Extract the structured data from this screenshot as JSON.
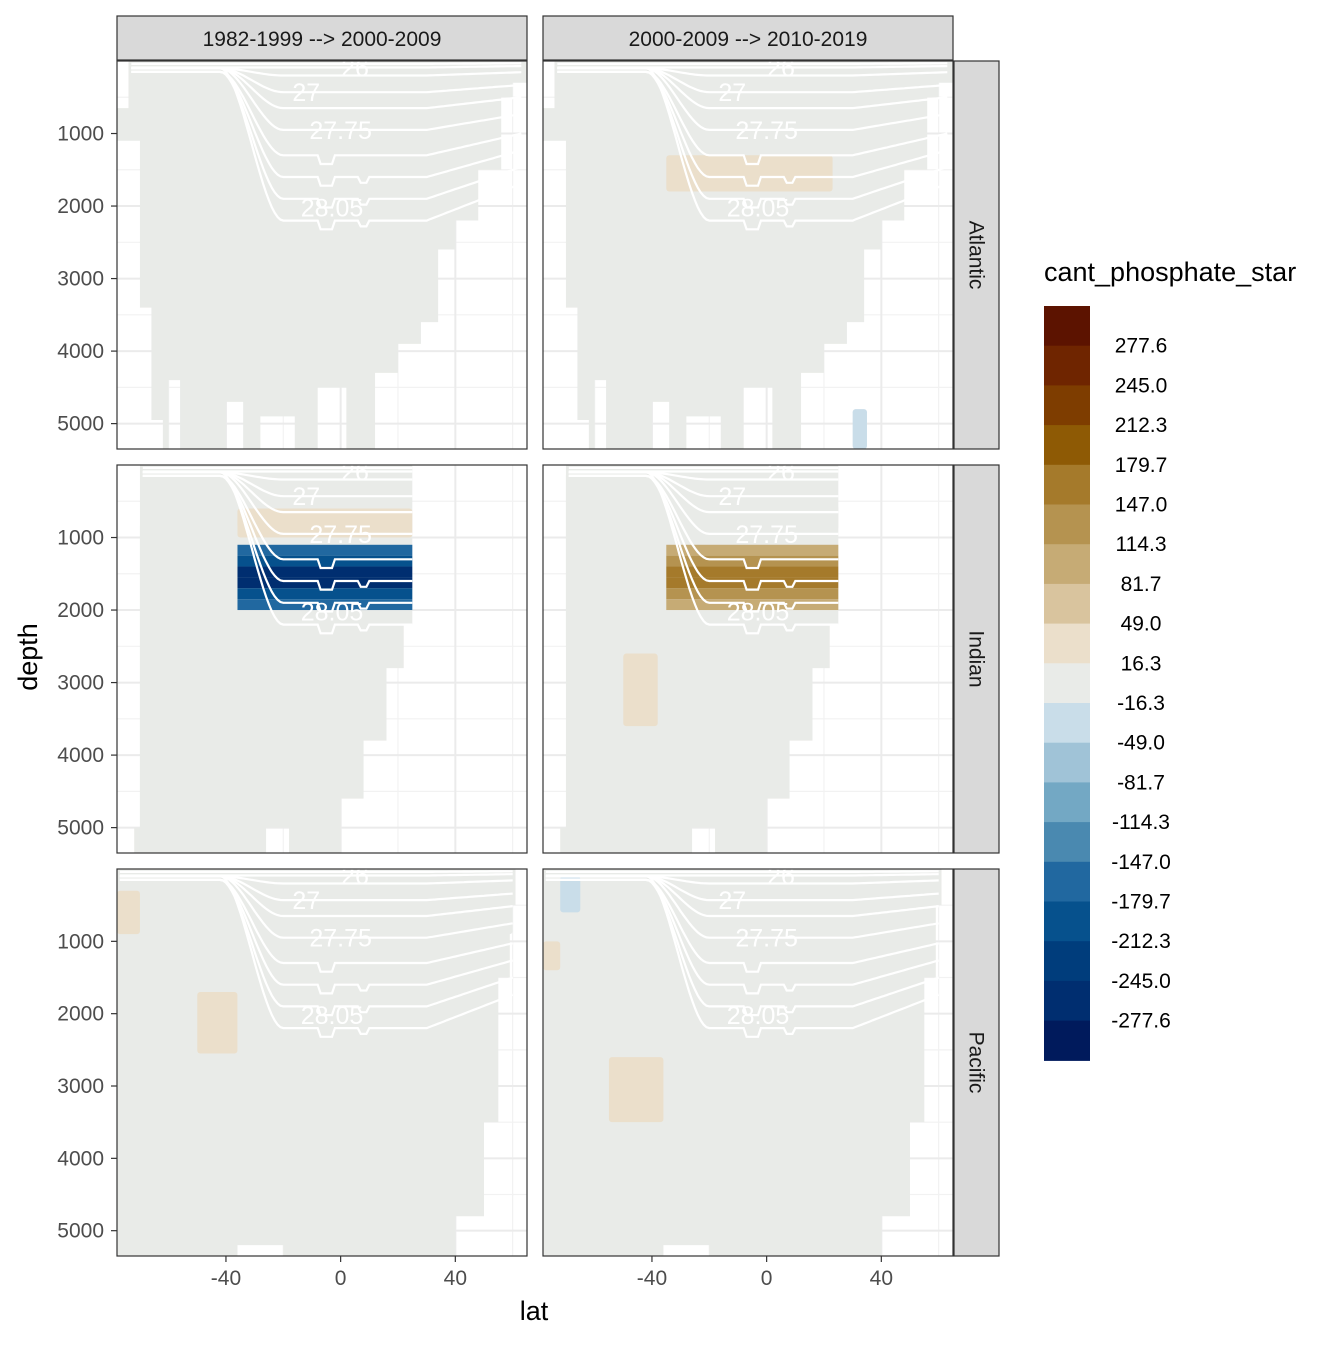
{
  "chart_data": {
    "type": "heatmap",
    "title": "",
    "xlabel": "lat",
    "ylabel": "depth",
    "facets": {
      "columns": [
        "1982-1999 --> 2000-2009",
        "2000-2009 --> 2010-2019"
      ],
      "rows": [
        "Atlantic",
        "Indian",
        "Pacific"
      ]
    },
    "x_ticks": [
      "-40",
      "0",
      "40"
    ],
    "x_tick_values": [
      -40,
      0,
      40
    ],
    "y_ticks": [
      "1000",
      "2000",
      "3000",
      "4000",
      "5000"
    ],
    "y_tick_values": [
      1000,
      2000,
      3000,
      4000,
      5000
    ],
    "xlim": [
      -78,
      65
    ],
    "ylim": [
      5350,
      0
    ],
    "y_reversed": true,
    "grid": true,
    "legend": {
      "title": "cant_phosphate_star",
      "position": "right",
      "labels": [
        "277.6",
        "245.0",
        "212.3",
        "179.7",
        "147.0",
        "114.3",
        "81.7",
        "49.0",
        "16.3",
        "-16.3",
        "-49.0",
        "-81.7",
        "-114.3",
        "-147.0",
        "-179.7",
        "-212.3",
        "-245.0",
        "-277.6"
      ],
      "colors": [
        "#5c1300",
        "#6f2500",
        "#7e3d00",
        "#8e5a05",
        "#a57a2b",
        "#b59350",
        "#c6ab75",
        "#d9c49e",
        "#ebdfcb",
        "#e9ebe8",
        "#c9dde9",
        "#a0c3d7",
        "#73a8c4",
        "#4a89b0",
        "#2168a0",
        "#06518d",
        "#003d7c",
        "#002e70",
        "#001a5c"
      ]
    },
    "isopycnal_labels": [
      "26",
      "27",
      "27.75",
      "28.05"
    ],
    "colors": {
      "ocean_background": "#e9ebe8",
      "isopycnal_line": "#ffffff",
      "positive_light": "#ebdfcb",
      "positive_mid": "#c6ab75",
      "positive_strong": "#8e5a05",
      "negative_light": "#c9dde9",
      "negative_mid": "#73a8c4",
      "negative_strong": "#002e70"
    },
    "panels": [
      {
        "basin": "Atlantic",
        "period": "1982-1999 --> 2000-2009",
        "anomalies": [
          {
            "lat": [
              -36,
              25
            ],
            "depth": [
              1300,
              1800
            ],
            "value": -16.3,
            "label": "-16.3"
          }
        ]
      },
      {
        "basin": "Atlantic",
        "period": "2000-2009 --> 2010-2019",
        "anomalies": [
          {
            "lat": [
              -35,
              23
            ],
            "depth": [
              1300,
              1800
            ],
            "value": 16.3,
            "label": "16.3"
          },
          {
            "lat": [
              -45,
              -40
            ],
            "depth": [
              1100,
              2000
            ],
            "value": -16.3,
            "label": "-16.3"
          },
          {
            "lat": [
              30,
              35
            ],
            "depth": [
              4800,
              5350
            ],
            "value": -49.0,
            "label": "-49.0"
          }
        ]
      },
      {
        "basin": "Indian",
        "period": "1982-1999 --> 2000-2009",
        "anomalies": [
          {
            "lat": [
              -36,
              25
            ],
            "depth": [
              1100,
              2000
            ],
            "value": -277.6,
            "label": "-277.6"
          },
          {
            "lat": [
              -36,
              25
            ],
            "depth": [
              600,
              1000
            ],
            "value": 16.3,
            "label": "16.3"
          },
          {
            "lat": [
              -70,
              -36
            ],
            "depth": [
              800,
              5350
            ],
            "value": -16.3,
            "label": "-16.3"
          }
        ]
      },
      {
        "basin": "Indian",
        "period": "2000-2009 --> 2010-2019",
        "anomalies": [
          {
            "lat": [
              -35,
              25
            ],
            "depth": [
              1100,
              2000
            ],
            "value": 179.7,
            "label": "179.7"
          },
          {
            "lat": [
              -35,
              25
            ],
            "depth": [
              550,
              900
            ],
            "value": -16.3,
            "label": "-16.3"
          },
          {
            "lat": [
              -70,
              -40
            ],
            "depth": [
              100,
              2500
            ],
            "value": -16.3,
            "label": "-16.3"
          },
          {
            "lat": [
              -50,
              -38
            ],
            "depth": [
              2600,
              3600
            ],
            "value": 16.3,
            "label": "16.3"
          }
        ]
      },
      {
        "basin": "Pacific",
        "period": "1982-1999 --> 2000-2009",
        "anomalies": [
          {
            "lat": [
              -78,
              -36
            ],
            "depth": [
              1500,
              5350
            ],
            "value": -16.3,
            "label": "-16.3"
          },
          {
            "lat": [
              -50,
              -36
            ],
            "depth": [
              1700,
              2550
            ],
            "value": 16.3,
            "label": "16.3"
          },
          {
            "lat": [
              -78,
              -70
            ],
            "depth": [
              300,
              900
            ],
            "value": 16.3,
            "label": "16.3"
          },
          {
            "lat": [
              35,
              60
            ],
            "depth": [
              450,
              900
            ],
            "value": -16.3,
            "label": "-16.3"
          }
        ]
      },
      {
        "basin": "Pacific",
        "period": "2000-2009 --> 2010-2019",
        "anomalies": [
          {
            "lat": [
              -55,
              -36
            ],
            "depth": [
              1000,
              2500
            ],
            "value": -16.3,
            "label": "-16.3"
          },
          {
            "lat": [
              -55,
              -36
            ],
            "depth": [
              2600,
              3500
            ],
            "value": 16.3,
            "label": "16.3"
          },
          {
            "lat": [
              -78,
              -72
            ],
            "depth": [
              1000,
              1400
            ],
            "value": 16.3,
            "label": "16.3"
          },
          {
            "lat": [
              -72,
              -65
            ],
            "depth": [
              100,
              600
            ],
            "value": -49.0,
            "label": "-49.0"
          }
        ]
      }
    ]
  }
}
